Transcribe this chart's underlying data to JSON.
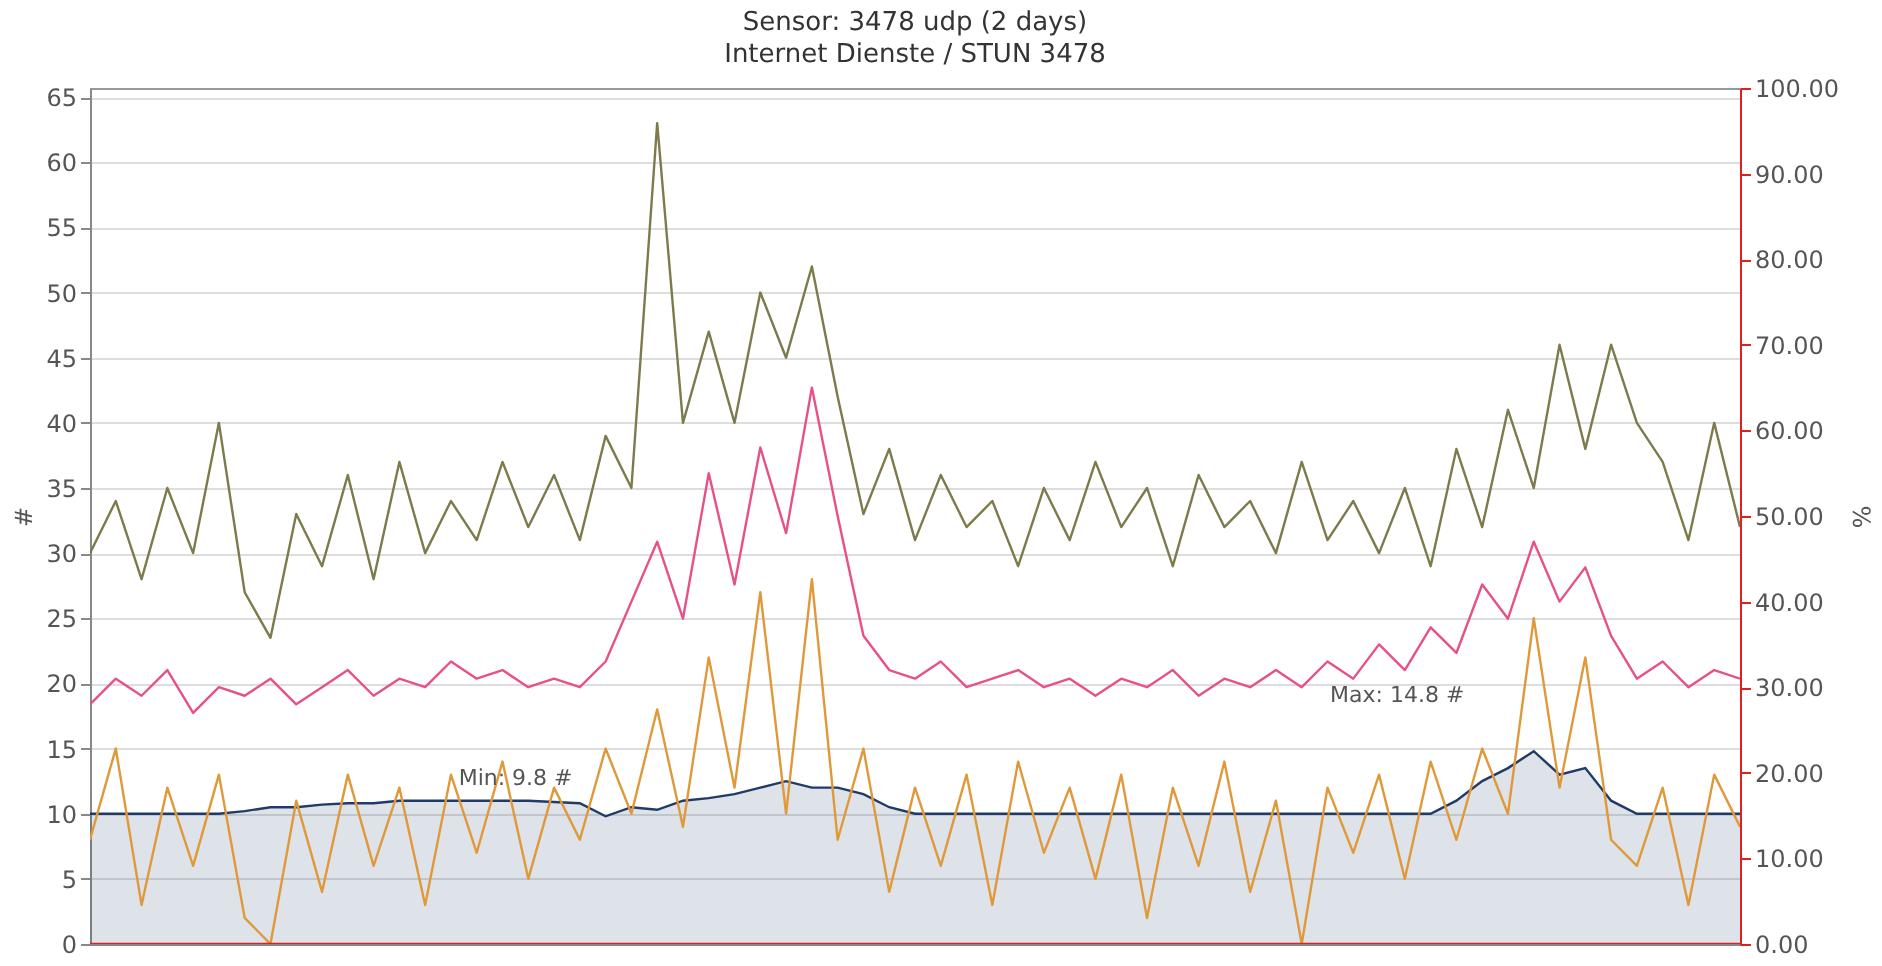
{
  "chart_data": {
    "type": "line",
    "title": "Sensor: 3478 udp (2 days)",
    "subtitle": "Internet Dienste / STUN 3478",
    "ylabel": "#",
    "y2label": "%",
    "categories": [
      null,
      null,
      null,
      null,
      null,
      null,
      null,
      null,
      null,
      null,
      null,
      null,
      null,
      null,
      null,
      null,
      null,
      null,
      null,
      null,
      null,
      null,
      null,
      null,
      null,
      null,
      null,
      null,
      null,
      null,
      null,
      null,
      null,
      null,
      null,
      null,
      null,
      null,
      null,
      null,
      null,
      null,
      null,
      null,
      null,
      null,
      null,
      null,
      null,
      null,
      null,
      null,
      null,
      null,
      null,
      null,
      null,
      null,
      null,
      null,
      null,
      null,
      null,
      null,
      null
    ],
    "ylim": [
      0,
      65.7
    ],
    "yticks": [
      0,
      5,
      10,
      15,
      20,
      25,
      30,
      35,
      40,
      45,
      50,
      55,
      60,
      65
    ],
    "y2lim": [
      0,
      100
    ],
    "y2ticks": [
      {
        "value": 0,
        "label": "0.00"
      },
      {
        "value": 10,
        "label": "10.00"
      },
      {
        "value": 20,
        "label": "20.00"
      },
      {
        "value": 30,
        "label": "30.00"
      },
      {
        "value": 40,
        "label": "40.00"
      },
      {
        "value": 50,
        "label": "50.00"
      },
      {
        "value": 60,
        "label": "60.00"
      },
      {
        "value": 70,
        "label": "70.00"
      },
      {
        "value": 80,
        "label": "80.00"
      },
      {
        "value": 90,
        "label": "90.00"
      },
      {
        "value": 100,
        "label": "100.00"
      }
    ],
    "grid": "y",
    "tick_labels": "y",
    "series": [
      {
        "type": "area",
        "color": "#203a6a",
        "values": [
          10,
          10,
          10,
          10,
          10,
          10,
          10.2,
          10.5,
          10.5,
          10.7,
          10.8,
          10.8,
          11,
          11,
          11,
          11,
          11,
          11,
          10.9,
          10.8,
          9.8,
          10.5,
          10.3,
          11,
          11.2,
          11.5,
          12,
          12.5,
          12,
          12,
          11.5,
          10.5,
          10,
          10,
          10,
          10,
          10,
          10,
          10,
          10,
          10,
          10,
          10,
          10,
          10,
          10,
          10,
          10,
          10,
          10,
          10,
          10,
          10,
          11,
          12.5,
          13.5,
          14.8,
          13,
          13.5,
          11,
          10,
          10,
          10,
          10,
          10
        ]
      },
      {
        "color": "#7d7a4c",
        "values": [
          30,
          34,
          28,
          35,
          30,
          40,
          27,
          23.5,
          33,
          29,
          36,
          28,
          37,
          30,
          34,
          31,
          37,
          32,
          36,
          31,
          39,
          35,
          63,
          40,
          47,
          40,
          50,
          45,
          52,
          42,
          33,
          38,
          31,
          36,
          32,
          34,
          29,
          35,
          31,
          37,
          32,
          35,
          29,
          36,
          32,
          34,
          30,
          37,
          31,
          34,
          30,
          35,
          29,
          38,
          32,
          41,
          35,
          46,
          38,
          46,
          40,
          37,
          31,
          40,
          32
        ]
      },
      {
        "color": "#e8508a",
        "axis": "y2",
        "values": [
          28,
          31,
          29,
          32,
          27,
          30,
          29,
          31,
          28,
          30,
          32,
          29,
          31,
          30,
          33,
          31,
          32,
          30,
          31,
          30,
          33,
          40,
          47,
          38,
          55,
          42,
          58,
          48,
          65,
          50,
          36,
          32,
          31,
          33,
          30,
          31,
          32,
          30,
          31,
          29,
          31,
          30,
          32,
          29,
          31,
          30,
          32,
          30,
          33,
          31,
          35,
          32,
          37,
          34,
          42,
          38,
          47,
          40,
          44,
          36,
          31,
          33,
          30,
          32,
          31
        ]
      },
      {
        "color": "#e0993a",
        "values": [
          8,
          15,
          3,
          12,
          6,
          13,
          2,
          0,
          11,
          4,
          13,
          6,
          12,
          3,
          13,
          7,
          14,
          5,
          12,
          8,
          15,
          10,
          18,
          9,
          22,
          12,
          27,
          10,
          28,
          8,
          15,
          4,
          12,
          6,
          13,
          3,
          14,
          7,
          12,
          5,
          13,
          2,
          12,
          6,
          14,
          4,
          11,
          0,
          12,
          7,
          13,
          5,
          14,
          8,
          15,
          10,
          25,
          12,
          22,
          8,
          6,
          12,
          3,
          13,
          9
        ]
      },
      {
        "color": "#e02020",
        "axis": "y2",
        "values": [
          0,
          0,
          0,
          0,
          0,
          0,
          0,
          0,
          0,
          0,
          0,
          0,
          0,
          0,
          0,
          0,
          0,
          0,
          0,
          0,
          0,
          0,
          0,
          0,
          0,
          0,
          0,
          0,
          0,
          0,
          0,
          0,
          0,
          0,
          0,
          0,
          0,
          0,
          0,
          0,
          0,
          0,
          0,
          0,
          0,
          0,
          0,
          0,
          0,
          0,
          0,
          0,
          0,
          0,
          0,
          0,
          0,
          0,
          0,
          0,
          0,
          0,
          0,
          0,
          0
        ]
      }
    ],
    "annotations": [
      "Min: 9.8 #",
      "Max: 14.8 #"
    ]
  }
}
